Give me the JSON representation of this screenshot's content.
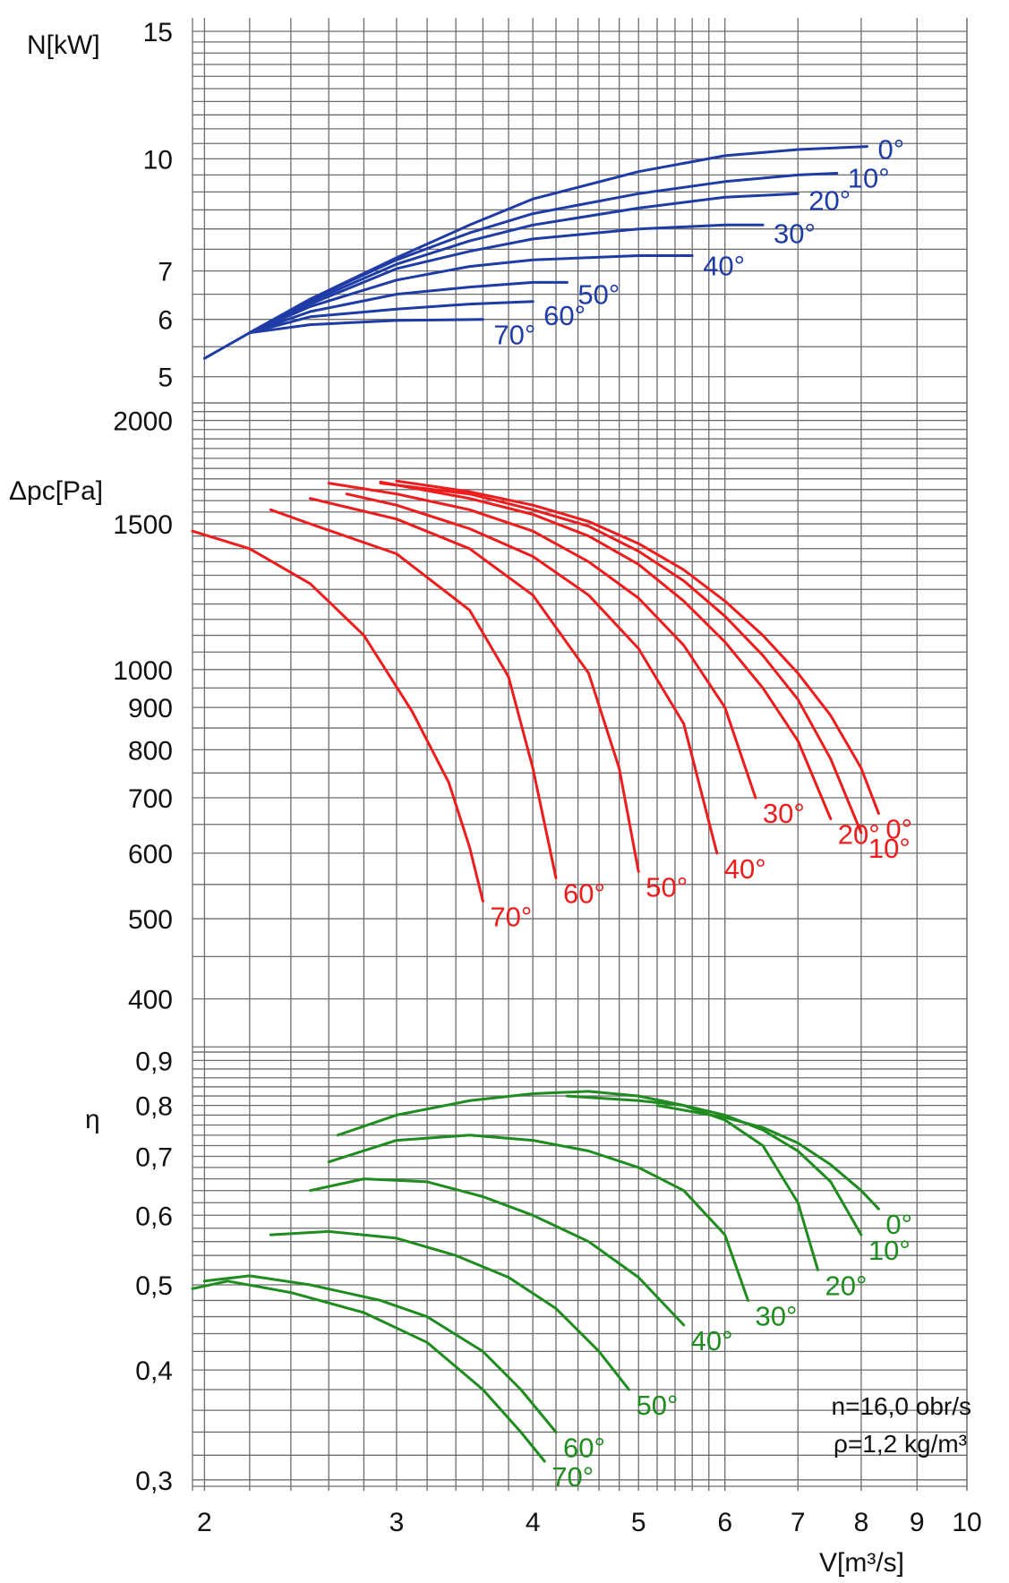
{
  "colors": {
    "power": "#1f3ca6",
    "pressure": "#ee1c1c",
    "efficiency": "#1f8c1f",
    "grid": "#6d6d6d",
    "text": "#111111"
  },
  "annotations": {
    "speed": "n=16,0 obr/s",
    "density": "ρ=1,2 kg/m³"
  },
  "chart_data": [
    {
      "type": "line",
      "title": "",
      "xlabel": "V[m³/s]",
      "ylabel": "N[kW]",
      "xscale": "log",
      "yscale": "log",
      "xlim": [
        1.95,
        10
      ],
      "ylim": [
        4.6,
        15
      ],
      "x_ticks": [
        "2",
        "3",
        "4",
        "5",
        "6",
        "7",
        "8",
        "9",
        "10"
      ],
      "y_ticks": [
        "15",
        "10",
        "7",
        "6",
        "5"
      ],
      "grid": true,
      "series": [
        {
          "name": "0°",
          "points": [
            [
              2.0,
              5.3
            ],
            [
              2.2,
              5.75
            ],
            [
              2.5,
              6.4
            ],
            [
              3.0,
              7.3
            ],
            [
              3.5,
              8.1
            ],
            [
              4.0,
              8.8
            ],
            [
              5.0,
              9.6
            ],
            [
              6.0,
              10.1
            ],
            [
              7.0,
              10.3
            ],
            [
              8.1,
              10.4
            ]
          ]
        },
        {
          "name": "10°",
          "points": [
            [
              2.2,
              5.75
            ],
            [
              2.5,
              6.4
            ],
            [
              3.0,
              7.25
            ],
            [
              3.5,
              7.9
            ],
            [
              4.0,
              8.4
            ],
            [
              5.0,
              8.95
            ],
            [
              6.0,
              9.3
            ],
            [
              7.0,
              9.5
            ],
            [
              7.6,
              9.55
            ]
          ]
        },
        {
          "name": "20°",
          "points": [
            [
              2.2,
              5.75
            ],
            [
              2.5,
              6.35
            ],
            [
              3.0,
              7.15
            ],
            [
              3.5,
              7.7
            ],
            [
              4.0,
              8.1
            ],
            [
              5.0,
              8.55
            ],
            [
              6.0,
              8.85
            ],
            [
              7.0,
              8.95
            ]
          ]
        },
        {
          "name": "30°",
          "points": [
            [
              2.2,
              5.75
            ],
            [
              2.5,
              6.3
            ],
            [
              3.0,
              7.05
            ],
            [
              3.5,
              7.45
            ],
            [
              4.0,
              7.75
            ],
            [
              5.0,
              8.0
            ],
            [
              6.0,
              8.1
            ],
            [
              6.5,
              8.1
            ]
          ]
        },
        {
          "name": "40°",
          "points": [
            [
              2.2,
              5.75
            ],
            [
              2.5,
              6.25
            ],
            [
              3.0,
              6.8
            ],
            [
              3.5,
              7.1
            ],
            [
              4.0,
              7.25
            ],
            [
              5.0,
              7.35
            ],
            [
              5.6,
              7.35
            ]
          ]
        },
        {
          "name": "50°",
          "points": [
            [
              2.2,
              5.75
            ],
            [
              2.5,
              6.15
            ],
            [
              3.0,
              6.5
            ],
            [
              3.5,
              6.65
            ],
            [
              4.0,
              6.75
            ],
            [
              4.3,
              6.75
            ]
          ]
        },
        {
          "name": "60°",
          "points": [
            [
              2.2,
              5.75
            ],
            [
              2.5,
              6.05
            ],
            [
              3.0,
              6.2
            ],
            [
              3.5,
              6.3
            ],
            [
              4.0,
              6.35
            ]
          ]
        },
        {
          "name": "70°",
          "points": [
            [
              2.2,
              5.75
            ],
            [
              2.5,
              5.9
            ],
            [
              3.0,
              5.98
            ],
            [
              3.6,
              6.0
            ]
          ]
        }
      ]
    },
    {
      "type": "line",
      "title": "",
      "xlabel": "V[m³/s]",
      "ylabel": "Δpc[Pa]",
      "xscale": "log",
      "yscale": "log",
      "xlim": [
        1.95,
        10
      ],
      "ylim": [
        345,
        2100
      ],
      "x_ticks": [
        "2",
        "3",
        "4",
        "5",
        "6",
        "7",
        "8",
        "9",
        "10"
      ],
      "y_ticks": [
        "2000",
        "1500",
        "1000",
        "900",
        "800",
        "700",
        "600",
        "500",
        "400"
      ],
      "grid": true,
      "series": [
        {
          "name": "0°",
          "points": [
            [
              3.0,
              1690
            ],
            [
              3.5,
              1640
            ],
            [
              4.0,
              1580
            ],
            [
              4.5,
              1510
            ],
            [
              5.0,
              1420
            ],
            [
              5.5,
              1320
            ],
            [
              6.0,
              1210
            ],
            [
              6.5,
              1100
            ],
            [
              7.0,
              990
            ],
            [
              7.5,
              880
            ],
            [
              8.0,
              760
            ],
            [
              8.3,
              670
            ]
          ]
        },
        {
          "name": "10°",
          "points": [
            [
              2.9,
              1680
            ],
            [
              3.5,
              1630
            ],
            [
              4.0,
              1560
            ],
            [
              4.5,
              1490
            ],
            [
              5.0,
              1390
            ],
            [
              5.5,
              1280
            ],
            [
              6.0,
              1160
            ],
            [
              6.5,
              1040
            ],
            [
              7.0,
              920
            ],
            [
              7.5,
              780
            ],
            [
              8.0,
              635
            ]
          ]
        },
        {
          "name": "20°",
          "points": [
            [
              2.9,
              1685
            ],
            [
              3.5,
              1610
            ],
            [
              4.0,
              1540
            ],
            [
              4.5,
              1450
            ],
            [
              5.0,
              1340
            ],
            [
              5.5,
              1210
            ],
            [
              6.0,
              1080
            ],
            [
              6.5,
              950
            ],
            [
              7.0,
              820
            ],
            [
              7.5,
              660
            ]
          ]
        },
        {
          "name": "30°",
          "points": [
            [
              2.6,
              1680
            ],
            [
              3.0,
              1630
            ],
            [
              3.5,
              1560
            ],
            [
              4.0,
              1470
            ],
            [
              4.5,
              1350
            ],
            [
              5.0,
              1220
            ],
            [
              5.5,
              1070
            ],
            [
              6.0,
              900
            ],
            [
              6.4,
              700
            ]
          ]
        },
        {
          "name": "40°",
          "points": [
            [
              2.7,
              1630
            ],
            [
              3.0,
              1580
            ],
            [
              3.5,
              1480
            ],
            [
              4.0,
              1370
            ],
            [
              4.5,
              1230
            ],
            [
              5.0,
              1060
            ],
            [
              5.5,
              860
            ],
            [
              5.9,
              600
            ]
          ]
        },
        {
          "name": "50°",
          "points": [
            [
              2.5,
              1610
            ],
            [
              3.0,
              1520
            ],
            [
              3.5,
              1400
            ],
            [
              4.0,
              1230
            ],
            [
              4.5,
              990
            ],
            [
              4.8,
              760
            ],
            [
              5.0,
              570
            ]
          ]
        },
        {
          "name": "60°",
          "points": [
            [
              2.3,
              1560
            ],
            [
              2.5,
              1500
            ],
            [
              3.0,
              1380
            ],
            [
              3.5,
              1180
            ],
            [
              3.8,
              980
            ],
            [
              4.0,
              760
            ],
            [
              4.2,
              560
            ]
          ]
        },
        {
          "name": "70°",
          "points": [
            [
              1.95,
              1470
            ],
            [
              2.2,
              1400
            ],
            [
              2.5,
              1270
            ],
            [
              2.8,
              1100
            ],
            [
              3.1,
              890
            ],
            [
              3.35,
              730
            ],
            [
              3.5,
              610
            ],
            [
              3.6,
              525
            ]
          ]
        }
      ]
    },
    {
      "type": "line",
      "title": "",
      "xlabel": "V[m³/s]",
      "ylabel": "η",
      "xscale": "log",
      "yscale": "log",
      "xlim": [
        1.95,
        10
      ],
      "ylim": [
        0.295,
        0.92
      ],
      "x_ticks": [
        "2",
        "3",
        "4",
        "5",
        "6",
        "7",
        "8",
        "9",
        "10"
      ],
      "y_ticks": [
        "0,9",
        "0,8",
        "0,7",
        "0,6",
        "0,5",
        "0,4",
        "0,3"
      ],
      "grid": true,
      "series": [
        {
          "name": "0°",
          "points": [
            [
              5.2,
              0.8
            ],
            [
              6.0,
              0.775
            ],
            [
              6.5,
              0.755
            ],
            [
              7.0,
              0.725
            ],
            [
              7.5,
              0.685
            ],
            [
              8.0,
              0.64
            ],
            [
              8.3,
              0.61
            ]
          ]
        },
        {
          "name": "10°",
          "points": [
            [
              4.3,
              0.82
            ],
            [
              5.0,
              0.81
            ],
            [
              5.5,
              0.8
            ],
            [
              6.0,
              0.78
            ],
            [
              6.5,
              0.75
            ],
            [
              7.0,
              0.71
            ],
            [
              7.5,
              0.655
            ],
            [
              8.0,
              0.57
            ]
          ]
        },
        {
          "name": "20°",
          "points": [
            [
              2.65,
              0.74
            ],
            [
              3.0,
              0.78
            ],
            [
              3.5,
              0.81
            ],
            [
              4.0,
              0.825
            ],
            [
              4.5,
              0.83
            ],
            [
              5.0,
              0.82
            ],
            [
              5.5,
              0.8
            ],
            [
              6.0,
              0.77
            ],
            [
              6.5,
              0.72
            ],
            [
              7.0,
              0.62
            ],
            [
              7.3,
              0.52
            ]
          ]
        },
        {
          "name": "30°",
          "points": [
            [
              2.6,
              0.69
            ],
            [
              3.0,
              0.73
            ],
            [
              3.5,
              0.74
            ],
            [
              4.0,
              0.73
            ],
            [
              4.5,
              0.71
            ],
            [
              5.0,
              0.68
            ],
            [
              5.5,
              0.64
            ],
            [
              6.0,
              0.57
            ],
            [
              6.3,
              0.48
            ]
          ]
        },
        {
          "name": "40°",
          "points": [
            [
              2.5,
              0.64
            ],
            [
              2.8,
              0.66
            ],
            [
              3.2,
              0.655
            ],
            [
              3.6,
              0.63
            ],
            [
              4.0,
              0.6
            ],
            [
              4.5,
              0.56
            ],
            [
              5.0,
              0.51
            ],
            [
              5.5,
              0.45
            ]
          ]
        },
        {
          "name": "50°",
          "points": [
            [
              2.3,
              0.57
            ],
            [
              2.6,
              0.575
            ],
            [
              3.0,
              0.565
            ],
            [
              3.4,
              0.54
            ],
            [
              3.8,
              0.51
            ],
            [
              4.2,
              0.47
            ],
            [
              4.6,
              0.42
            ],
            [
              4.9,
              0.38
            ]
          ]
        },
        {
          "name": "60°",
          "points": [
            [
              2.0,
              0.505
            ],
            [
              2.2,
              0.512
            ],
            [
              2.5,
              0.5
            ],
            [
              2.9,
              0.48
            ],
            [
              3.2,
              0.46
            ],
            [
              3.6,
              0.42
            ],
            [
              3.9,
              0.38
            ],
            [
              4.2,
              0.34
            ]
          ]
        },
        {
          "name": "70°",
          "points": [
            [
              1.95,
              0.495
            ],
            [
              2.1,
              0.505
            ],
            [
              2.4,
              0.49
            ],
            [
              2.8,
              0.465
            ],
            [
              3.2,
              0.43
            ],
            [
              3.6,
              0.38
            ],
            [
              3.9,
              0.34
            ],
            [
              4.1,
              0.315
            ]
          ]
        }
      ]
    }
  ]
}
